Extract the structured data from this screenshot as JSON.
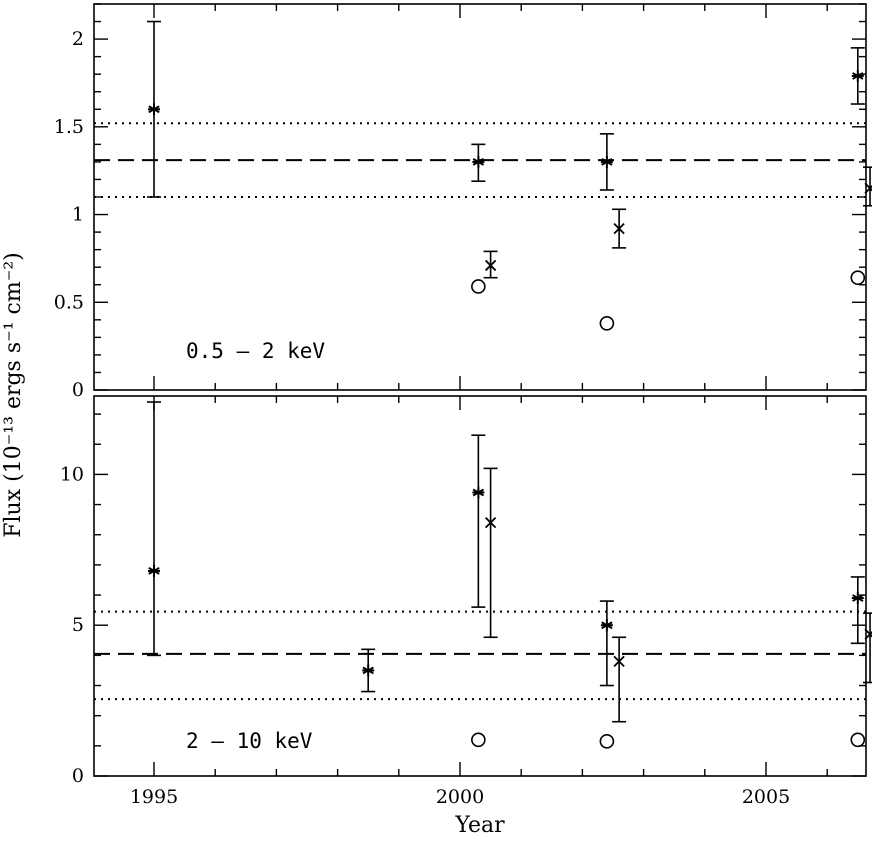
{
  "chart_data": [
    {
      "type": "scatter",
      "band_label": "0.5 – 2 keV",
      "xlabel": "Year",
      "ylabel": "Flux (10⁻¹³ ergs s⁻¹ cm⁻²)",
      "xlim": [
        1994,
        2007
      ],
      "ylim": [
        0,
        2.2
      ],
      "x_ticks": [
        "1995",
        "2000",
        "2005"
      ],
      "y_ticks": [
        "0",
        "0.5",
        "1",
        "1.5",
        "2"
      ],
      "series": [
        {
          "marker": "asterisk",
          "points": [
            {
              "x": 1995.0,
              "y": 1.6,
              "lo": 1.1,
              "hi": 2.1
            },
            {
              "x": 2000.3,
              "y": 1.3,
              "lo": 1.19,
              "hi": 1.4
            },
            {
              "x": 2002.4,
              "y": 1.3,
              "lo": 1.14,
              "hi": 1.46
            },
            {
              "x": 2006.5,
              "y": 1.79,
              "lo": 1.63,
              "hi": 1.95
            }
          ]
        },
        {
          "marker": "cross",
          "points": [
            {
              "x": 2000.5,
              "y": 0.71,
              "lo": 0.64,
              "hi": 0.79
            },
            {
              "x": 2002.6,
              "y": 0.92,
              "lo": 0.81,
              "hi": 1.03
            },
            {
              "x": 2006.7,
              "y": 1.15,
              "lo": 1.05,
              "hi": 1.27
            }
          ]
        },
        {
          "marker": "circle",
          "points": [
            {
              "x": 2000.3,
              "y": 0.59
            },
            {
              "x": 2002.4,
              "y": 0.38
            },
            {
              "x": 2006.5,
              "y": 0.64
            }
          ]
        }
      ],
      "reference_lines": [
        {
          "style": "dashed",
          "y": 1.31
        },
        {
          "style": "dotted",
          "y": 1.52
        },
        {
          "style": "dotted",
          "y": 1.1
        }
      ]
    },
    {
      "type": "scatter",
      "band_label": "2 – 10 keV",
      "xlim": [
        1994,
        2007
      ],
      "ylim": [
        0,
        12.6
      ],
      "x_ticks": [
        "1995",
        "2000",
        "2005"
      ],
      "y_ticks": [
        "0",
        "5",
        "10"
      ],
      "series": [
        {
          "marker": "asterisk",
          "points": [
            {
              "x": 1995.0,
              "y": 6.8,
              "lo": 4.0,
              "hi": 12.4
            },
            {
              "x": 1998.5,
              "y": 3.5,
              "lo": 2.8,
              "hi": 4.2
            },
            {
              "x": 2000.3,
              "y": 9.4,
              "lo": 5.6,
              "hi": 11.3
            },
            {
              "x": 2002.4,
              "y": 5.0,
              "lo": 3.0,
              "hi": 5.8
            },
            {
              "x": 2006.5,
              "y": 5.9,
              "lo": 4.4,
              "hi": 6.6
            }
          ]
        },
        {
          "marker": "cross",
          "points": [
            {
              "x": 2000.5,
              "y": 8.4,
              "lo": 4.6,
              "hi": 10.2
            },
            {
              "x": 2002.6,
              "y": 3.8,
              "lo": 1.8,
              "hi": 4.6
            },
            {
              "x": 2006.7,
              "y": 4.7,
              "lo": 3.1,
              "hi": 5.4
            }
          ]
        },
        {
          "marker": "circle",
          "points": [
            {
              "x": 2000.3,
              "y": 1.2
            },
            {
              "x": 2002.4,
              "y": 1.15
            },
            {
              "x": 2006.5,
              "y": 1.2
            }
          ]
        }
      ],
      "reference_lines": [
        {
          "style": "dashed",
          "y": 4.05
        },
        {
          "style": "dotted",
          "y": 5.45
        },
        {
          "style": "dotted",
          "y": 2.55
        }
      ]
    }
  ]
}
